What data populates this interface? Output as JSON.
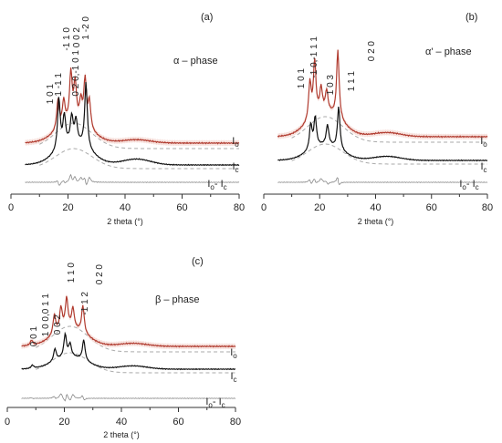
{
  "colors": {
    "observed": "#b03a2e",
    "calculated": "#111111",
    "difference": "#888888",
    "fit": "#aaaaaa",
    "shade": "#f4d6d0"
  },
  "chart_data": [
    {
      "type": "line",
      "panel_label": "(a)",
      "phase_label": "α – phase",
      "xlabel": "2 theta (°)",
      "xlim": [
        0,
        80
      ],
      "xticks": [
        0,
        20,
        40,
        60,
        80
      ],
      "grid": false,
      "series": [
        {
          "name": "Io",
          "sub": "o",
          "peaks": [
            [
              16.5,
              0.55
            ],
            [
              18.5,
              0.45
            ],
            [
              21.0,
              0.9
            ],
            [
              22.5,
              0.7
            ],
            [
              24.5,
              0.4
            ],
            [
              26.0,
              0.85
            ],
            [
              27.5,
              0.5
            ]
          ]
        },
        {
          "name": "Ic",
          "sub": "c",
          "peaks": [
            [
              16.8,
              0.7
            ],
            [
              18.7,
              0.4
            ],
            [
              21.3,
              0.35
            ],
            [
              22.8,
              0.3
            ],
            [
              26.3,
              0.9
            ]
          ]
        },
        {
          "name": "Io - Ic",
          "sub": "o",
          "sub2": "c"
        }
      ],
      "annotations": [
        "1 0 1",
        "1 -1 1",
        "-1 1 0",
        "0 0 2",
        "0 2 0,-1 0 1",
        "1 -2 0"
      ]
    },
    {
      "type": "line",
      "panel_label": "(b)",
      "phase_label": "α' – phase",
      "xlabel": "2 theta (°)",
      "xlim": [
        0,
        80
      ],
      "xticks": [
        0,
        20,
        40,
        60,
        80
      ],
      "grid": false,
      "series": [
        {
          "name": "Io",
          "sub": "o",
          "peaks": [
            [
              16.5,
              0.55
            ],
            [
              18.2,
              0.8
            ],
            [
              20.5,
              0.35
            ],
            [
              22.5,
              0.3
            ],
            [
              26.5,
              1.0
            ]
          ]
        },
        {
          "name": "Ic",
          "sub": "c",
          "peaks": [
            [
              16.8,
              0.5
            ],
            [
              18.4,
              0.6
            ],
            [
              22.8,
              0.4
            ],
            [
              26.8,
              0.85
            ]
          ]
        },
        {
          "name": "Io - Ic",
          "sub": "o",
          "sub2": "c"
        }
      ],
      "annotations": [
        "1 0 1",
        "-1 0,-1 1 1",
        "1 0 3",
        "1 1 1",
        "0 2 0"
      ]
    },
    {
      "type": "line",
      "panel_label": "(c)",
      "phase_label": "β – phase",
      "xlabel": "2 theta (°)",
      "xlim": [
        0,
        80
      ],
      "xticks": [
        0,
        20,
        40,
        60,
        80
      ],
      "grid": false,
      "series": [
        {
          "name": "Io",
          "sub": "o",
          "peaks": [
            [
              8.5,
              0.1
            ],
            [
              16.5,
              0.4
            ],
            [
              18.8,
              0.45
            ],
            [
              20.8,
              0.6
            ],
            [
              23.0,
              0.4
            ],
            [
              26.5,
              0.55
            ]
          ]
        },
        {
          "name": "Ic",
          "sub": "c",
          "peaks": [
            [
              8.8,
              0.08
            ],
            [
              16.7,
              0.3
            ],
            [
              20.3,
              0.55
            ],
            [
              22.0,
              0.3
            ],
            [
              26.8,
              0.5
            ]
          ]
        },
        {
          "name": "Io - Ic",
          "sub": "o",
          "sub2": "c"
        }
      ],
      "annotations": [
        "0 0 1",
        "1 0 0,0 1 1",
        "0 0 2",
        "1 1 0",
        "-1 1 2",
        "0 2 0"
      ]
    }
  ]
}
